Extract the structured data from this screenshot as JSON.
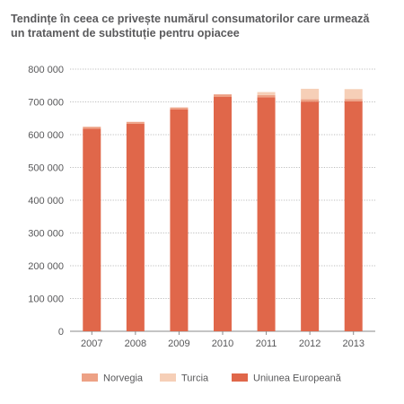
{
  "title_line1": "Tendințe în ceea ce privește numărul consumatorilor care urmează",
  "title_line2": "un tratament de substituție pentru opiacee",
  "colors": {
    "eu": "#e0674a",
    "norway": "#eda185",
    "turkey": "#f6cfb7",
    "grid": "#a8a8a8",
    "axis": "#8a8a8a"
  },
  "chart_data": {
    "type": "bar",
    "stacked": true,
    "title": "Tendințe în ceea ce privește numărul consumatorilor care urmează un tratament de substituție pentru opiacee",
    "categories": [
      "2007",
      "2008",
      "2009",
      "2010",
      "2011",
      "2012",
      "2013"
    ],
    "series": [
      {
        "name": "Uniunea Europeană",
        "color": "#e0674a",
        "values": [
          618000,
          633000,
          677000,
          716000,
          714000,
          701000,
          702000
        ]
      },
      {
        "name": "Norvegia",
        "color": "#eda185",
        "values": [
          6000,
          6000,
          6000,
          7000,
          7000,
          7000,
          7000
        ]
      },
      {
        "name": "Turcia",
        "color": "#f6cfb7",
        "values": [
          0,
          0,
          0,
          0,
          9000,
          32000,
          30000
        ]
      }
    ],
    "ylim": [
      0,
      800000
    ],
    "yticks": [
      "0",
      "100 000",
      "200 000",
      "300 000",
      "400 000",
      "500 000",
      "600 000",
      "700 000",
      "800 000"
    ],
    "ytick_values": [
      0,
      100000,
      200000,
      300000,
      400000,
      500000,
      600000,
      700000,
      800000
    ],
    "grid": true,
    "legend_position": "bottom",
    "legend": [
      "Norvegia",
      "Turcia",
      "Uniunea Europeană"
    ]
  }
}
